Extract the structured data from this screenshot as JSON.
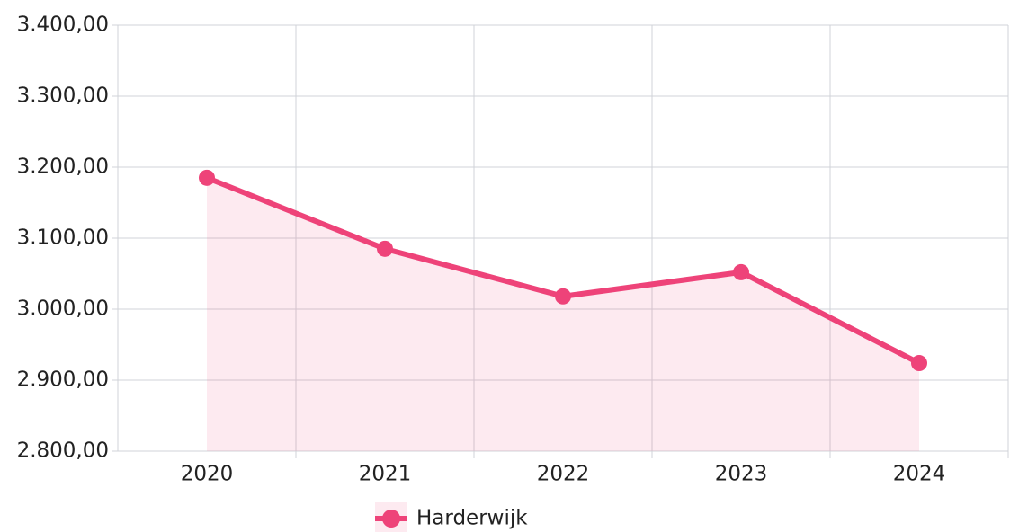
{
  "chart_data": {
    "type": "line",
    "categories": [
      "2020",
      "2021",
      "2022",
      "2023",
      "2024"
    ],
    "series": [
      {
        "name": "Harderwijk",
        "color": "#ee4379",
        "values": [
          3185,
          3085,
          3018,
          3052,
          2924
        ]
      }
    ],
    "ylim": [
      2800,
      3400
    ],
    "yticks": [
      {
        "value": 2800,
        "label": "2.800,00"
      },
      {
        "value": 2900,
        "label": "2.900,00"
      },
      {
        "value": 3000,
        "label": "3.000,00"
      },
      {
        "value": 3100,
        "label": "3.100,00"
      },
      {
        "value": 3200,
        "label": "3.200,00"
      },
      {
        "value": 3300,
        "label": "3.300,00"
      },
      {
        "value": 3400,
        "label": "3.400,00"
      }
    ],
    "grid": true,
    "legend": "bottom"
  }
}
